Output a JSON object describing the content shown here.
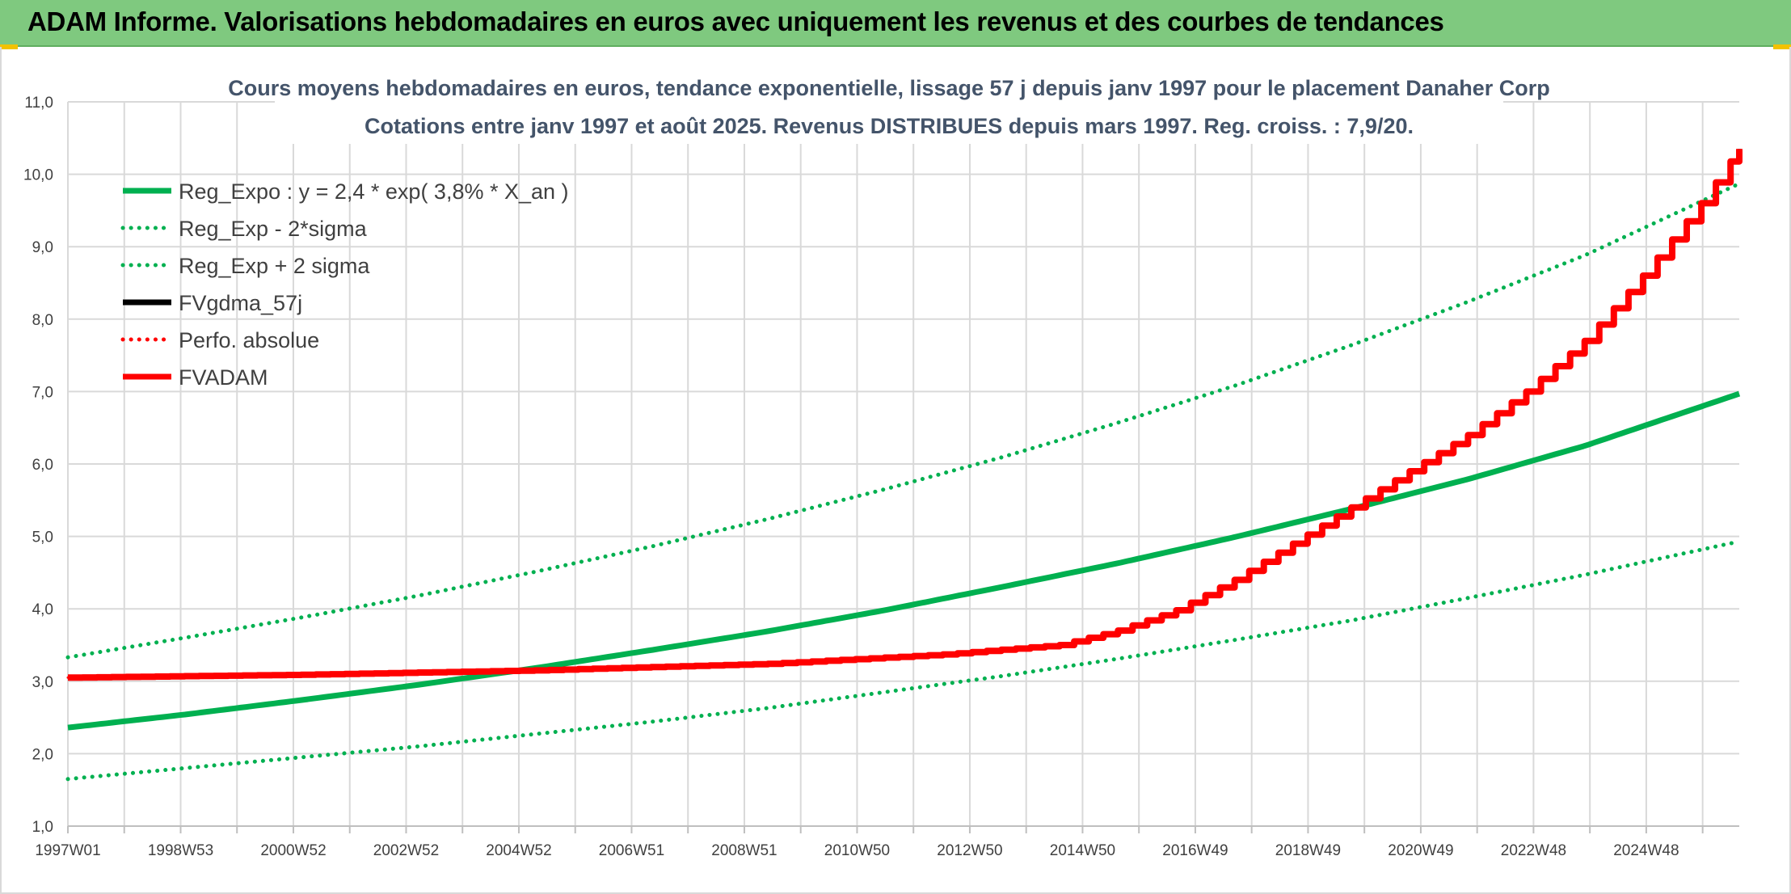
{
  "banner": {
    "title": "ADAM Informe. Valorisations hebdomadaires en euros avec uniquement les revenus et des courbes de tendances"
  },
  "colors": {
    "banner_bg": "#7fc97f",
    "reg_green": "#00b050",
    "red": "#ff0000",
    "black": "#000000",
    "grid": "#d9d9d9",
    "title_text": "#44546a"
  },
  "chart_data": {
    "type": "line",
    "title": "Cours moyens hebdomadaires en euros, tendance exponentielle, lissage 57 j depuis janv 1997 pour le placement Danaher Corp",
    "subtitle": "Cotations entre janv 1997 et août 2025. Revenus DISTRIBUES depuis mars 1997. Reg. croiss. : 7,9/20.",
    "xlabel": "",
    "ylabel": "",
    "xlim": [
      1997.0,
      2025.65
    ],
    "ylim": [
      1.0,
      11.0
    ],
    "y_ticks": [
      "1,0",
      "2,0",
      "3,0",
      "4,0",
      "5,0",
      "6,0",
      "7,0",
      "8,0",
      "9,0",
      "10,0",
      "11,0"
    ],
    "x_tick_labels": [
      "1997W01",
      "1998W53",
      "2000W52",
      "2002W52",
      "2004W52",
      "2006W51",
      "2008W51",
      "2010W50",
      "2012W50",
      "2014W50",
      "2016W49",
      "2018W49",
      "2020W49",
      "2022W48",
      "2024W48"
    ],
    "grid": true,
    "legend_position": "top-left",
    "series": [
      {
        "name": "Reg_Expo : y = 2,4 * exp( 3,8% *  X_an )",
        "style": "solid",
        "color": "#00b050",
        "x": [
          1997,
          1999,
          2001,
          2003,
          2005,
          2007,
          2009,
          2011,
          2013,
          2015,
          2017,
          2019,
          2021,
          2023,
          2025.65
        ],
        "y": [
          2.36,
          2.54,
          2.74,
          2.95,
          3.18,
          3.43,
          3.69,
          3.98,
          4.3,
          4.63,
          4.99,
          5.38,
          5.79,
          6.25,
          6.97
        ]
      },
      {
        "name": "Reg_Exp - 2*sigma",
        "style": "dotted",
        "color": "#00b050",
        "x": [
          1997,
          1999,
          2001,
          2003,
          2005,
          2007,
          2009,
          2011,
          2013,
          2015,
          2017,
          2019,
          2021,
          2023,
          2025.65
        ],
        "y": [
          1.65,
          1.8,
          1.95,
          2.1,
          2.27,
          2.44,
          2.63,
          2.85,
          3.07,
          3.31,
          3.57,
          3.84,
          4.15,
          4.47,
          4.93
        ]
      },
      {
        "name": "Reg_Exp + 2 sigma",
        "style": "dotted",
        "color": "#00b050",
        "x": [
          1997,
          1999,
          2001,
          2003,
          2005,
          2007,
          2009,
          2011,
          2013,
          2015,
          2017,
          2019,
          2021,
          2023,
          2025.65
        ],
        "y": [
          3.33,
          3.6,
          3.88,
          4.18,
          4.51,
          4.86,
          5.24,
          5.65,
          6.09,
          6.57,
          7.08,
          7.64,
          8.24,
          8.88,
          9.87
        ]
      },
      {
        "name": "FVgdma_57j",
        "style": "solid",
        "color": "#000000",
        "x": [
          1997,
          2001,
          2005,
          2009,
          2012,
          2014,
          2015,
          2016,
          2017,
          2018,
          2019,
          2020,
          2021,
          2022,
          2023,
          2024,
          2025,
          2025.65
        ],
        "y": [
          3.05,
          3.09,
          3.15,
          3.24,
          3.37,
          3.5,
          3.7,
          3.98,
          4.4,
          4.9,
          5.4,
          5.9,
          6.4,
          7.0,
          7.7,
          8.6,
          9.6,
          10.35
        ]
      },
      {
        "name": "Perfo. absolue",
        "style": "dotted",
        "color": "#ff0000",
        "x": [
          1997,
          2001,
          2005,
          2009,
          2012,
          2014,
          2015,
          2016,
          2017,
          2018,
          2019,
          2020,
          2021,
          2022,
          2023,
          2024,
          2025,
          2025.65
        ],
        "y": [
          3.05,
          3.09,
          3.15,
          3.24,
          3.37,
          3.5,
          3.7,
          3.98,
          4.4,
          4.9,
          5.4,
          5.9,
          6.4,
          7.0,
          7.7,
          8.6,
          9.6,
          10.35
        ]
      },
      {
        "name": "FVADAM",
        "style": "solid",
        "color": "#ff0000",
        "x": [
          1997,
          2001,
          2005,
          2009,
          2012,
          2014,
          2015,
          2016,
          2017,
          2018,
          2019,
          2020,
          2021,
          2022,
          2023,
          2024,
          2025,
          2025.65
        ],
        "y": [
          3.05,
          3.09,
          3.15,
          3.24,
          3.37,
          3.5,
          3.7,
          3.98,
          4.4,
          4.9,
          5.4,
          5.9,
          6.4,
          7.0,
          7.7,
          8.6,
          9.6,
          10.35
        ]
      }
    ]
  }
}
